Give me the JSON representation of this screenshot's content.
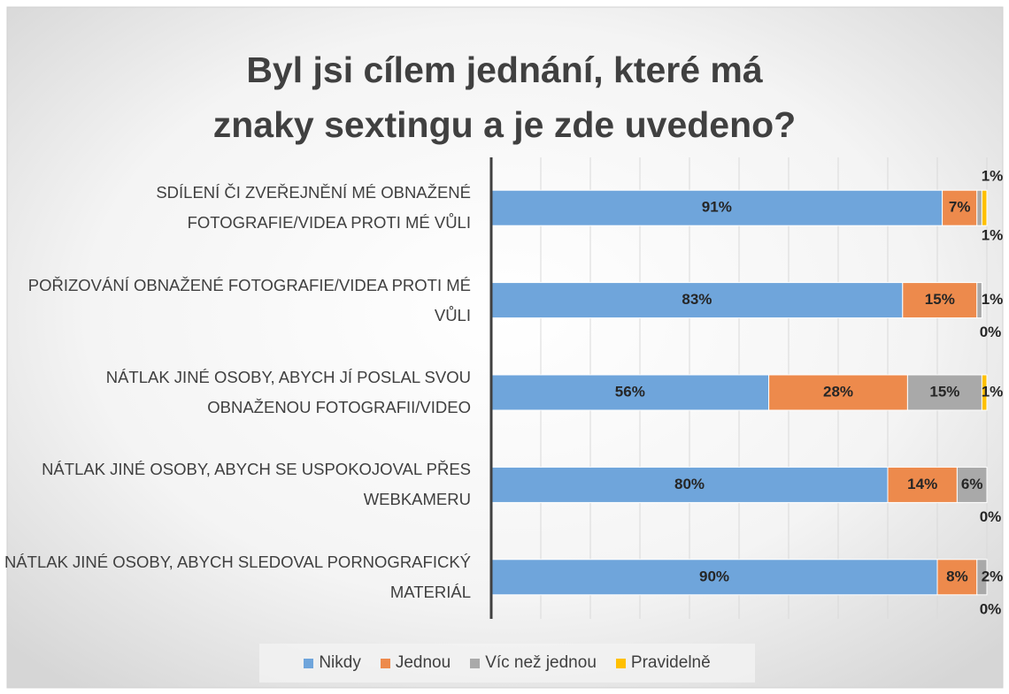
{
  "chart_data": {
    "type": "bar",
    "stacked": true,
    "title": "Byl jsi cílem jednání, které má znaky sextingu a je zde uvedeno?",
    "categories": [
      "SDÍLENÍ ČI ZVEŘEJNĚNÍ MÉ OBNAŽENÉ FOTOGRAFIE/VIDEA PROTI MÉ VŮLI",
      "POŘIZOVÁNÍ OBNAŽENÉ FOTOGRAFIE/VIDEA PROTI MÉ VŮLI",
      "NÁTLAK JINÉ OSOBY, ABYCH JÍ POSLAL SVOU OBNAŽENOU FOTOGRAFII/VIDEO",
      "NÁTLAK JINÉ OSOBY, ABYCH SE USPOKOJOVAL PŘES WEBKAMERU",
      "NÁTLAK JINÉ OSOBY, ABYCH SLEDOVAL PORNOGRAFICKÝ MATERIÁL"
    ],
    "series": [
      {
        "name": "Nikdy",
        "color": "#6fa5db",
        "values": [
          91,
          83,
          56,
          80,
          90
        ],
        "value_labels": [
          "91%",
          "83%",
          "56%",
          "80%",
          "90%"
        ]
      },
      {
        "name": "Jednou",
        "color": "#ed8a4c",
        "values": [
          7,
          15,
          28,
          14,
          8
        ],
        "value_labels": [
          "7%",
          "15%",
          "28%",
          "14%",
          "8%"
        ]
      },
      {
        "name": "Víc než jednou",
        "color": "#a9a9a9",
        "values": [
          1,
          1,
          15,
          6,
          2
        ],
        "value_labels": [
          "1%",
          "1%",
          "15%",
          "6%",
          "2%"
        ]
      },
      {
        "name": "Pravidelně",
        "color": "#ffc000",
        "values": [
          1,
          0,
          1,
          0,
          0
        ],
        "value_labels": [
          "1%",
          "0%",
          "1%",
          "0%",
          "0%"
        ]
      }
    ],
    "xlim": [
      0,
      100
    ],
    "xticks": [
      0,
      10,
      20,
      30,
      40,
      50,
      60,
      70,
      80,
      90,
      100
    ],
    "grid": true,
    "legend": "bottom"
  }
}
